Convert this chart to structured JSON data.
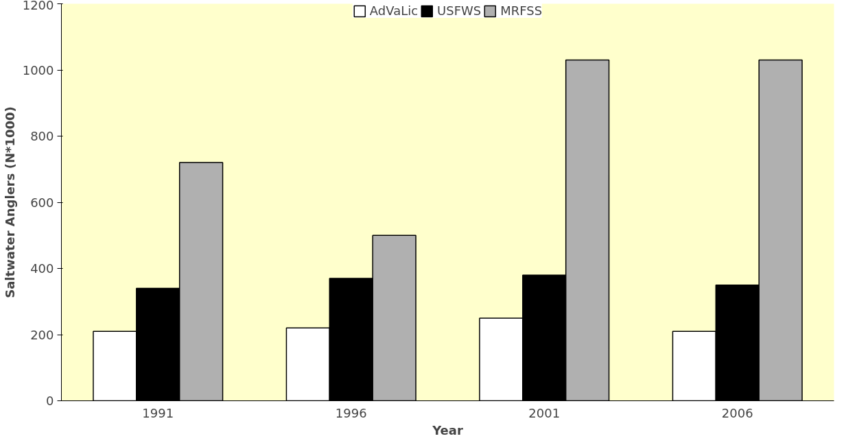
{
  "chart_data": {
    "type": "bar",
    "xlabel": "Year",
    "ylabel": "Saltwater Anglers (N*1000)",
    "categories": [
      "1991",
      "1996",
      "2001",
      "2006"
    ],
    "series": [
      {
        "name": "AdVaLic",
        "color": "#ffffff",
        "values": [
          210,
          220,
          250,
          210
        ]
      },
      {
        "name": "USFWS",
        "color": "#000000",
        "values": [
          340,
          370,
          380,
          350
        ]
      },
      {
        "name": "MRFSS",
        "color": "#b0b0b0",
        "values": [
          720,
          500,
          1030,
          1030
        ]
      }
    ],
    "ylim": [
      0,
      1200
    ],
    "yticks": [
      0,
      200,
      400,
      600,
      800,
      1000,
      1200
    ],
    "grid": false,
    "legend": "top"
  }
}
